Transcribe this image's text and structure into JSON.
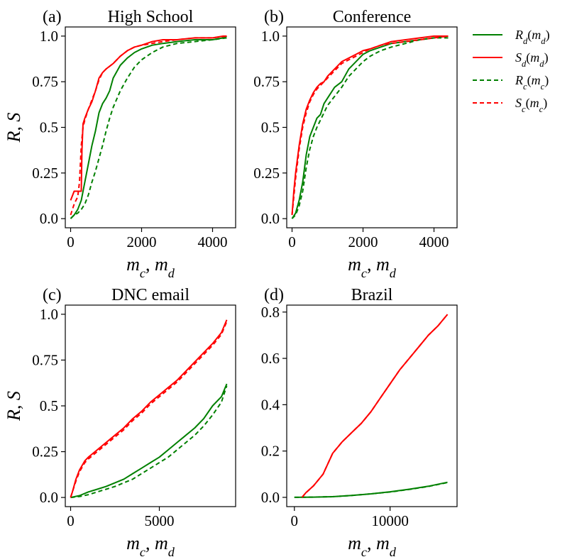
{
  "chart_data": [
    {
      "type": "line",
      "panel_tag": "(a)",
      "title": "High School",
      "xlabel": "m_c, m_d",
      "ylabel": "R, S",
      "xlim": [
        -150,
        4650
      ],
      "ylim": [
        -0.05,
        1.05
      ],
      "xticks": [
        0,
        2000,
        4000
      ],
      "yticks": [
        0.0,
        0.25,
        0.5,
        0.75,
        1.0
      ],
      "xtick_labels": [
        "0",
        "2000",
        "4000"
      ],
      "ytick_labels": [
        "0.0",
        "0.25",
        "0.5",
        "0.75",
        "1.0"
      ],
      "grid": false,
      "series": [
        {
          "name": "R_d(m_d)",
          "color": "#008000",
          "style": "solid",
          "x": [
            0,
            100,
            200,
            300,
            400,
            500,
            600,
            700,
            800,
            900,
            1000,
            1100,
            1200,
            1400,
            1600,
            1800,
            2000,
            2300,
            2600,
            3000,
            3500,
            4000,
            4300,
            4400
          ],
          "y": [
            0.0,
            0.02,
            0.05,
            0.1,
            0.2,
            0.3,
            0.4,
            0.48,
            0.58,
            0.63,
            0.66,
            0.7,
            0.77,
            0.84,
            0.88,
            0.91,
            0.93,
            0.95,
            0.96,
            0.97,
            0.98,
            0.98,
            0.99,
            1.0
          ]
        },
        {
          "name": "S_d(m_d)",
          "color": "#ff0000",
          "style": "solid",
          "x": [
            0,
            100,
            200,
            300,
            320,
            350,
            400,
            500,
            600,
            700,
            800,
            900,
            1000,
            1200,
            1400,
            1600,
            1800,
            2000,
            2300,
            2600,
            3000,
            3500,
            4000,
            4300,
            4400
          ],
          "y": [
            0.1,
            0.15,
            0.15,
            0.15,
            0.38,
            0.52,
            0.55,
            0.6,
            0.64,
            0.7,
            0.77,
            0.8,
            0.82,
            0.85,
            0.89,
            0.92,
            0.94,
            0.95,
            0.97,
            0.98,
            0.98,
            0.99,
            0.99,
            1.0,
            1.0
          ]
        },
        {
          "name": "R_c(m_c)",
          "color": "#008000",
          "style": "dashed",
          "x": [
            0,
            100,
            200,
            300,
            400,
            500,
            600,
            700,
            800,
            900,
            1000,
            1100,
            1200,
            1400,
            1600,
            1800,
            2000,
            2300,
            2600,
            3000,
            3500,
            4000,
            4400
          ],
          "y": [
            0.0,
            0.02,
            0.03,
            0.05,
            0.08,
            0.13,
            0.2,
            0.26,
            0.33,
            0.4,
            0.48,
            0.55,
            0.61,
            0.7,
            0.77,
            0.83,
            0.87,
            0.91,
            0.94,
            0.96,
            0.97,
            0.98,
            0.99
          ]
        },
        {
          "name": "S_c(m_c)",
          "color": "#ff0000",
          "style": "dashed",
          "x": [
            0,
            50,
            100,
            150,
            200,
            250,
            300,
            350,
            400,
            500,
            600,
            700,
            800,
            900,
            1000,
            1200,
            1400,
            1600,
            1800,
            2000,
            2300,
            2600,
            3000,
            3500,
            4000,
            4400
          ],
          "y": [
            0.02,
            0.05,
            0.08,
            0.1,
            0.12,
            0.2,
            0.4,
            0.5,
            0.54,
            0.6,
            0.65,
            0.7,
            0.76,
            0.8,
            0.82,
            0.85,
            0.89,
            0.92,
            0.94,
            0.95,
            0.96,
            0.97,
            0.98,
            0.99,
            0.99,
            1.0
          ]
        }
      ]
    },
    {
      "type": "line",
      "panel_tag": "(b)",
      "title": "Conference",
      "xlabel": "m_c, m_d",
      "ylabel": "",
      "xlim": [
        -150,
        4650
      ],
      "ylim": [
        -0.05,
        1.05
      ],
      "xticks": [
        0,
        2000,
        4000
      ],
      "yticks": [
        0.0,
        0.25,
        0.5,
        0.75,
        1.0
      ],
      "xtick_labels": [
        "0",
        "2000",
        "4000"
      ],
      "ytick_labels": [
        "0.0",
        "0.25",
        "0.5",
        "0.75",
        "1.0"
      ],
      "grid": false,
      "series": [
        {
          "name": "R_d(m_d)",
          "color": "#008000",
          "style": "solid",
          "x": [
            0,
            100,
            200,
            300,
            400,
            500,
            600,
            700,
            800,
            900,
            1000,
            1200,
            1400,
            1600,
            1800,
            2000,
            2200,
            2500,
            2800,
            3200,
            3600,
            4000,
            4400
          ],
          "y": [
            0.0,
            0.03,
            0.1,
            0.2,
            0.35,
            0.45,
            0.5,
            0.55,
            0.57,
            0.63,
            0.66,
            0.72,
            0.75,
            0.82,
            0.86,
            0.9,
            0.92,
            0.94,
            0.96,
            0.97,
            0.98,
            0.99,
            1.0
          ]
        },
        {
          "name": "S_d(m_d)",
          "color": "#ff0000",
          "style": "solid",
          "x": [
            0,
            50,
            100,
            200,
            300,
            400,
            500,
            600,
            700,
            800,
            900,
            1000,
            1200,
            1400,
            1600,
            1800,
            2000,
            2200,
            2500,
            2800,
            3200,
            3600,
            4000,
            4400
          ],
          "y": [
            0.02,
            0.15,
            0.25,
            0.4,
            0.52,
            0.6,
            0.65,
            0.69,
            0.72,
            0.74,
            0.75,
            0.78,
            0.82,
            0.86,
            0.88,
            0.9,
            0.92,
            0.93,
            0.95,
            0.97,
            0.98,
            0.99,
            1.0,
            1.0
          ]
        },
        {
          "name": "R_c(m_c)",
          "color": "#008000",
          "style": "dashed",
          "x": [
            0,
            100,
            200,
            300,
            400,
            500,
            600,
            700,
            800,
            900,
            1000,
            1200,
            1400,
            1600,
            1800,
            2000,
            2200,
            2500,
            2800,
            3200,
            3600,
            4000,
            4400
          ],
          "y": [
            0.0,
            0.02,
            0.07,
            0.15,
            0.28,
            0.38,
            0.45,
            0.5,
            0.54,
            0.58,
            0.62,
            0.67,
            0.72,
            0.78,
            0.82,
            0.86,
            0.89,
            0.92,
            0.94,
            0.96,
            0.98,
            0.99,
            0.99
          ]
        },
        {
          "name": "S_c(m_c)",
          "color": "#ff0000",
          "style": "dashed",
          "x": [
            0,
            50,
            100,
            200,
            300,
            400,
            500,
            600,
            700,
            800,
            900,
            1000,
            1200,
            1400,
            1600,
            1800,
            2000,
            2200,
            2500,
            2800,
            3200,
            3600,
            4000,
            4400
          ],
          "y": [
            0.02,
            0.12,
            0.22,
            0.38,
            0.5,
            0.58,
            0.64,
            0.68,
            0.71,
            0.73,
            0.75,
            0.77,
            0.81,
            0.85,
            0.87,
            0.89,
            0.91,
            0.93,
            0.95,
            0.96,
            0.97,
            0.98,
            0.99,
            1.0
          ]
        }
      ]
    },
    {
      "type": "line",
      "panel_tag": "(c)",
      "title": "DNC email",
      "xlabel": "m_c, m_d",
      "ylabel": "R, S",
      "xlim": [
        -300,
        9300
      ],
      "ylim": [
        -0.05,
        1.05
      ],
      "xticks": [
        0,
        5000
      ],
      "yticks": [
        0.0,
        0.25,
        0.5,
        0.75,
        1.0
      ],
      "xtick_labels": [
        "0",
        "5000"
      ],
      "ytick_labels": [
        "0.0",
        "0.25",
        "0.5",
        "0.75",
        "1.0"
      ],
      "grid": false,
      "series": [
        {
          "name": "R_d(m_d)",
          "color": "#008000",
          "style": "solid",
          "x": [
            0,
            500,
            1000,
            1500,
            2000,
            2500,
            3000,
            3500,
            4000,
            4500,
            5000,
            5500,
            6000,
            6500,
            7000,
            7500,
            8000,
            8500,
            8800
          ],
          "y": [
            0.0,
            0.01,
            0.03,
            0.045,
            0.06,
            0.08,
            0.1,
            0.13,
            0.16,
            0.19,
            0.22,
            0.26,
            0.3,
            0.34,
            0.38,
            0.43,
            0.5,
            0.55,
            0.62
          ]
        },
        {
          "name": "S_d(m_d)",
          "color": "#ff0000",
          "style": "solid",
          "x": [
            0,
            100,
            300,
            500,
            800,
            1000,
            1500,
            2000,
            2500,
            3000,
            3500,
            4000,
            4500,
            5000,
            5500,
            6000,
            6500,
            7000,
            7500,
            8000,
            8500,
            8800
          ],
          "y": [
            0.0,
            0.03,
            0.1,
            0.15,
            0.2,
            0.22,
            0.26,
            0.3,
            0.34,
            0.38,
            0.43,
            0.47,
            0.52,
            0.56,
            0.6,
            0.64,
            0.69,
            0.74,
            0.79,
            0.84,
            0.9,
            0.97
          ]
        },
        {
          "name": "R_c(m_c)",
          "color": "#008000",
          "style": "dashed",
          "x": [
            0,
            500,
            1000,
            1500,
            2000,
            2500,
            3000,
            3500,
            4000,
            4500,
            5000,
            5500,
            6000,
            6500,
            7000,
            7500,
            8000,
            8500,
            8800
          ],
          "y": [
            0.0,
            0.005,
            0.015,
            0.03,
            0.045,
            0.06,
            0.08,
            0.1,
            0.13,
            0.16,
            0.19,
            0.22,
            0.26,
            0.3,
            0.34,
            0.39,
            0.45,
            0.52,
            0.61
          ]
        },
        {
          "name": "S_c(m_c)",
          "color": "#ff0000",
          "style": "dashed",
          "x": [
            0,
            100,
            300,
            500,
            800,
            1000,
            1500,
            2000,
            2500,
            3000,
            3500,
            4000,
            4500,
            5000,
            5500,
            6000,
            6500,
            7000,
            7500,
            8000,
            8500,
            8800
          ],
          "y": [
            0.0,
            0.03,
            0.09,
            0.14,
            0.19,
            0.21,
            0.25,
            0.29,
            0.33,
            0.37,
            0.42,
            0.46,
            0.51,
            0.55,
            0.59,
            0.63,
            0.68,
            0.73,
            0.78,
            0.83,
            0.89,
            0.96
          ]
        }
      ]
    },
    {
      "type": "line",
      "panel_tag": "(d)",
      "title": "Brazil",
      "xlabel": "m_c, m_d",
      "ylabel": "",
      "xlim": [
        -800,
        17000
      ],
      "ylim": [
        -0.04,
        0.83
      ],
      "xticks": [
        0,
        10000
      ],
      "yticks": [
        0.0,
        0.2,
        0.4,
        0.6,
        0.8
      ],
      "xtick_labels": [
        "0",
        "10000"
      ],
      "ytick_labels": [
        "0.0",
        "0.2",
        "0.4",
        "0.6",
        "0.8"
      ],
      "grid": false,
      "series": [
        {
          "name": "R_d(m_d)",
          "color": "#008000",
          "style": "solid",
          "x": [
            0,
            2000,
            4000,
            6000,
            8000,
            10000,
            12000,
            14000,
            16000
          ],
          "y": [
            0.0,
            0.001,
            0.003,
            0.008,
            0.015,
            0.024,
            0.035,
            0.048,
            0.065
          ]
        },
        {
          "name": "S_d(m_d)",
          "color": "#ff0000",
          "style": "solid",
          "x": [
            800,
            1200,
            2000,
            3000,
            4000,
            5000,
            6000,
            7000,
            8000,
            9000,
            10000,
            11000,
            12000,
            13000,
            14000,
            15000,
            16000
          ],
          "y": [
            0.0,
            0.02,
            0.05,
            0.1,
            0.19,
            0.24,
            0.28,
            0.32,
            0.37,
            0.43,
            0.49,
            0.55,
            0.6,
            0.65,
            0.7,
            0.74,
            0.79
          ]
        },
        {
          "name": "R_c(m_c)",
          "color": "#008000",
          "style": "dashed",
          "x": [
            0,
            2000,
            4000,
            6000,
            8000,
            10000,
            12000,
            14000,
            16000
          ],
          "y": [
            0.0,
            0.001,
            0.003,
            0.008,
            0.015,
            0.023,
            0.034,
            0.047,
            0.064
          ]
        },
        {
          "name": "S_c(m_c)",
          "color": "#ff0000",
          "style": "dashed",
          "x": [
            800,
            1200,
            2000,
            3000,
            4000,
            5000,
            6000,
            7000,
            8000,
            9000,
            10000,
            11000,
            12000,
            13000,
            14000,
            15000,
            16000
          ],
          "y": [
            0.0,
            0.02,
            0.05,
            0.1,
            0.19,
            0.24,
            0.28,
            0.32,
            0.37,
            0.43,
            0.49,
            0.55,
            0.6,
            0.65,
            0.7,
            0.74,
            0.79
          ]
        }
      ]
    }
  ],
  "legend": {
    "position": "right of top row",
    "entries": [
      {
        "label_main": "R",
        "label_sub": "d",
        "label_arg": "m",
        "label_argsub": "d",
        "color": "#008000",
        "style": "solid"
      },
      {
        "label_main": "S",
        "label_sub": "d",
        "label_arg": "m",
        "label_argsub": "d",
        "color": "#ff0000",
        "style": "solid"
      },
      {
        "label_main": "R",
        "label_sub": "c",
        "label_arg": "m",
        "label_argsub": "c",
        "color": "#008000",
        "style": "dashed"
      },
      {
        "label_main": "S",
        "label_sub": "c",
        "label_arg": "m",
        "label_argsub": "c",
        "color": "#ff0000",
        "style": "dashed"
      }
    ]
  }
}
